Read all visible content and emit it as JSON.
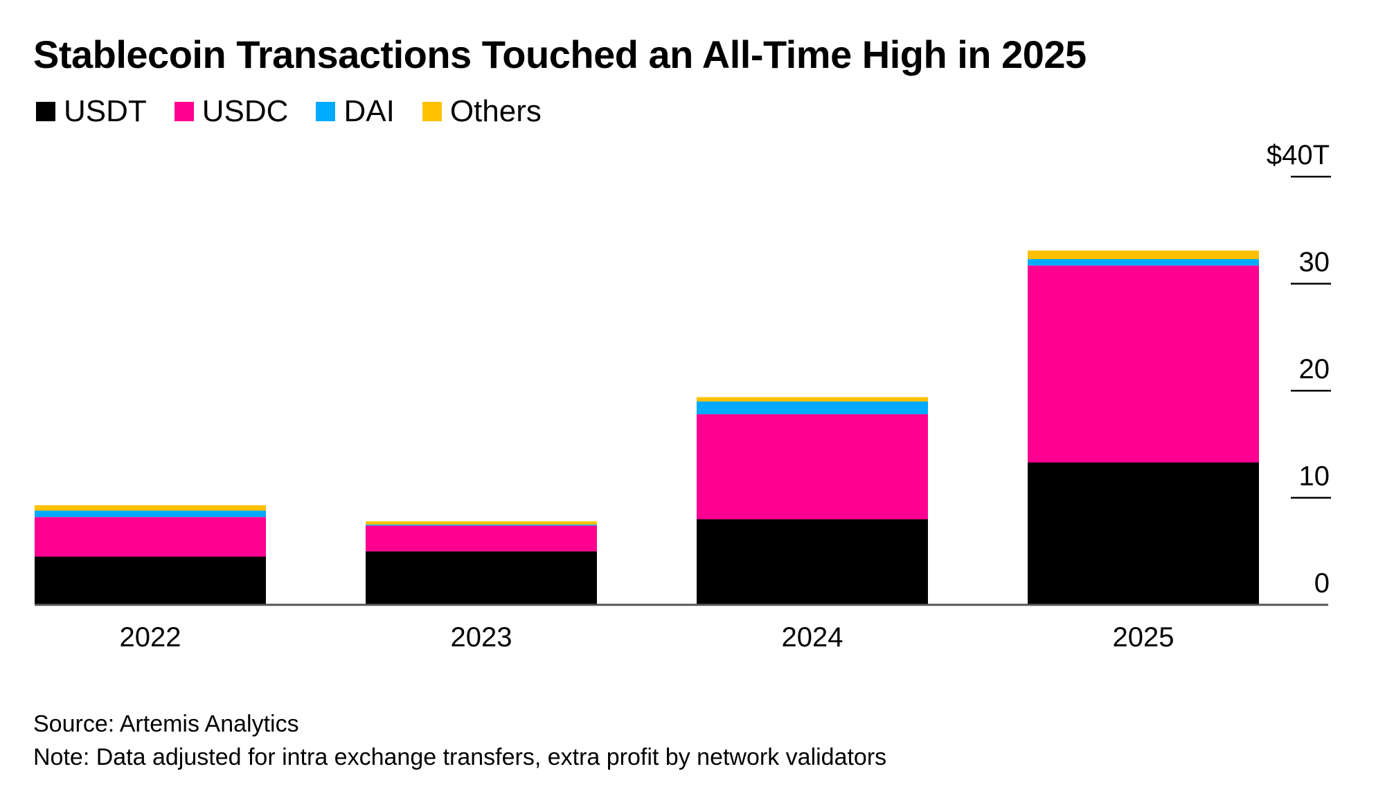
{
  "title": "Stablecoin Transactions Touched an All-Time High in 2025",
  "legend": [
    {
      "label": "USDT",
      "color": "#000000"
    },
    {
      "label": "USDC",
      "color": "#ff0090"
    },
    {
      "label": "DAI",
      "color": "#00aaff"
    },
    {
      "label": "Others",
      "color": "#ffc000"
    }
  ],
  "chart_data": {
    "type": "bar",
    "stacked": true,
    "categories": [
      "2022",
      "2023",
      "2024",
      "2025"
    ],
    "series": [
      {
        "name": "USDT",
        "color": "#000000",
        "values": [
          4.5,
          5.0,
          8.0,
          13.3
        ]
      },
      {
        "name": "USDC",
        "color": "#ff0090",
        "values": [
          3.7,
          2.4,
          9.8,
          18.4
        ]
      },
      {
        "name": "DAI",
        "color": "#00aaff",
        "values": [
          0.6,
          0.1,
          1.2,
          0.6
        ]
      },
      {
        "name": "Others",
        "color": "#ffc000",
        "values": [
          0.5,
          0.3,
          0.4,
          0.8
        ]
      }
    ],
    "ylim": [
      0,
      40
    ],
    "yticks": [
      0,
      10,
      20,
      30,
      40
    ],
    "ytick_labels": [
      "0",
      "10",
      "20",
      "30",
      "$40T"
    ],
    "y_axis_position": "right",
    "grid": false
  },
  "source": "Source: Artemis Analytics",
  "note": "Note: Data adjusted for intra exchange transfers, extra profit by network validators"
}
